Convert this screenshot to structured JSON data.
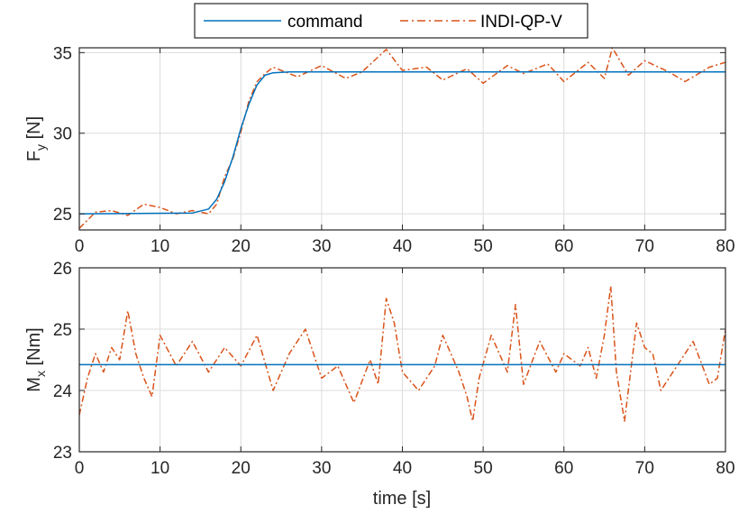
{
  "legend": {
    "entries": [
      {
        "label": "command",
        "color": "#0072BD",
        "style": "solid"
      },
      {
        "label": "INDI-QP-V",
        "color": "#D95319",
        "style": "dashdot"
      }
    ]
  },
  "chart_data": [
    {
      "type": "line",
      "panel": "top",
      "ylabel": "F_y [N]",
      "ylabel_main": "F",
      "ylabel_sub": "y",
      "ylabel_unit": " [N]",
      "xlabel": "",
      "xlim": [
        0,
        80
      ],
      "ylim": [
        24,
        35.3
      ],
      "xticks": [
        0,
        10,
        20,
        30,
        40,
        50,
        60,
        70,
        80
      ],
      "yticks": [
        25,
        30,
        35
      ],
      "grid": true,
      "series": [
        {
          "name": "command",
          "color": "#0072BD",
          "style": "solid",
          "x": [
            0,
            14,
            16,
            17,
            18,
            19,
            20,
            21,
            22,
            23,
            24,
            26,
            80
          ],
          "y": [
            25.0,
            25.05,
            25.3,
            25.9,
            27.0,
            28.5,
            30.3,
            31.8,
            33.0,
            33.6,
            33.75,
            33.8,
            33.8
          ]
        },
        {
          "name": "INDI-QP-V",
          "color": "#D95319",
          "style": "dashdot",
          "x": [
            0,
            2,
            4,
            6,
            8,
            10,
            12,
            14,
            16,
            17,
            18,
            19,
            20,
            21,
            22,
            23,
            24,
            27,
            30,
            33,
            35,
            38,
            40,
            43,
            45,
            48,
            50,
            53,
            55,
            58,
            60,
            63,
            65,
            66,
            68,
            70,
            73,
            75,
            78,
            80
          ],
          "y": [
            24.1,
            25.1,
            25.2,
            24.9,
            25.6,
            25.4,
            25.0,
            25.2,
            25.0,
            25.6,
            27.3,
            28.4,
            30.1,
            32.0,
            33.2,
            33.7,
            34.1,
            33.5,
            34.2,
            33.4,
            33.8,
            35.2,
            33.9,
            34.1,
            33.3,
            34.0,
            33.1,
            34.2,
            33.7,
            34.3,
            33.2,
            34.4,
            33.4,
            35.3,
            33.6,
            34.5,
            33.8,
            33.2,
            34.1,
            34.4
          ]
        }
      ]
    },
    {
      "type": "line",
      "panel": "bottom",
      "ylabel": "M_x [Nm]",
      "ylabel_main": "M",
      "ylabel_sub": "x",
      "ylabel_unit": " [Nm]",
      "xlabel": "time [s]",
      "xlim": [
        0,
        80
      ],
      "ylim": [
        23,
        26
      ],
      "xticks": [
        0,
        10,
        20,
        30,
        40,
        50,
        60,
        70,
        80
      ],
      "yticks": [
        23,
        24,
        25,
        26
      ],
      "grid": true,
      "series": [
        {
          "name": "command",
          "color": "#0072BD",
          "style": "solid",
          "x": [
            0,
            80
          ],
          "y": [
            24.42,
            24.42
          ]
        },
        {
          "name": "INDI-QP-V",
          "color": "#D95319",
          "style": "dashdot",
          "x": [
            0,
            1,
            2,
            3,
            4,
            5,
            6,
            7,
            8,
            9,
            10,
            12,
            14,
            16,
            18,
            20,
            22,
            24,
            26,
            28,
            30,
            32,
            34,
            36,
            37,
            38,
            39,
            40,
            42,
            44,
            45,
            46,
            47,
            48,
            48.7,
            49.5,
            51,
            53,
            54,
            55,
            57,
            59,
            60,
            62,
            63,
            64,
            65,
            65.8,
            66.5,
            67.5,
            69,
            70,
            71,
            72,
            74,
            76,
            78,
            79,
            80
          ],
          "y": [
            23.6,
            24.2,
            24.6,
            24.3,
            24.7,
            24.5,
            25.3,
            24.6,
            24.2,
            23.9,
            24.9,
            24.4,
            24.8,
            24.3,
            24.7,
            24.4,
            24.9,
            24.0,
            24.6,
            25.0,
            24.2,
            24.4,
            23.8,
            24.5,
            24.1,
            25.5,
            25.1,
            24.3,
            24.0,
            24.4,
            24.9,
            24.6,
            24.3,
            23.9,
            23.5,
            24.2,
            24.9,
            24.3,
            25.4,
            24.1,
            24.8,
            24.3,
            24.6,
            24.4,
            24.7,
            24.2,
            24.9,
            25.7,
            24.3,
            23.5,
            25.1,
            24.7,
            24.6,
            24.0,
            24.4,
            24.8,
            24.1,
            24.2,
            25.0
          ]
        }
      ]
    }
  ]
}
